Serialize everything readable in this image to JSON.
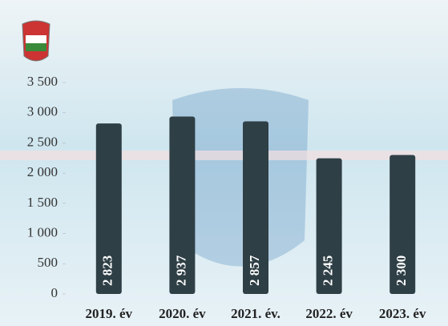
{
  "chart_data": {
    "type": "bar",
    "categories": [
      "2019. év",
      "2020. év",
      "2021. év.",
      "2022. év",
      "2023. év"
    ],
    "values": [
      2823,
      2937,
      2857,
      2245,
      2300
    ],
    "value_labels": [
      "2 823",
      "2 937",
      "2 857",
      "2 245",
      "2 300"
    ],
    "color": "#2f3f46",
    "ylim": [
      0,
      3500
    ],
    "yticks": [
      0,
      500,
      {
        "value": 1000,
        "label": "1 000"
      },
      {
        "value": 1500,
        "label": "1 500"
      },
      {
        "value": 2000,
        "label": "2 000"
      },
      {
        "value": 2500,
        "label": "2 500"
      },
      {
        "value": 3000,
        "label": "3 000"
      },
      {
        "value": 3500,
        "label": "3 500"
      }
    ]
  }
}
